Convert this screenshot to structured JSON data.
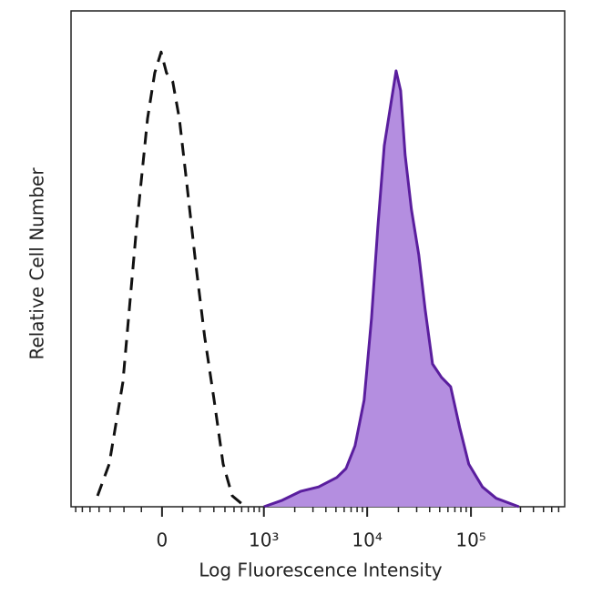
{
  "chart_data": {
    "type": "line",
    "xlabel": "Log Fluorescence Intensity",
    "ylabel": "Relative Cell Number",
    "xscale": {
      "type": "asinh",
      "width": 211
    },
    "xlim": [
      -780,
      800000
    ],
    "ylim": [
      0,
      100
    ],
    "xticks": [
      0,
      {
        "value": 1000,
        "label": "10³"
      },
      {
        "value": 10000,
        "label": "10⁴"
      },
      {
        "value": 100000,
        "label": "10⁵"
      }
    ],
    "xminorticks": [
      -700,
      -600,
      -500,
      -400,
      -300,
      -200,
      -100,
      100,
      200,
      300,
      400,
      500,
      600,
      700,
      800,
      900,
      2000,
      3000,
      4000,
      5000,
      6000,
      7000,
      8000,
      9000,
      20000,
      30000,
      40000,
      50000,
      60000,
      70000,
      80000,
      90000,
      200000,
      300000,
      400000,
      500000,
      600000,
      700000
    ],
    "series": [
      {
        "color": "#111111",
        "dash": true,
        "x": [
          -416,
          -308,
          -207,
          -126,
          -69,
          -34,
          -4,
          21,
          51,
          83,
          121,
          173,
          231,
          302,
          382,
          479,
          593
        ],
        "values": [
          2.2,
          8.6,
          25.1,
          56.3,
          78.3,
          87.5,
          91.7,
          87.5,
          85.7,
          78.3,
          65.5,
          49.0,
          34.3,
          21.5,
          8.6,
          2.2,
          0.7
        ]
      },
      {
        "color": "#5a1e9e",
        "fill": "#b48ee0",
        "x": [
          1000,
          1510,
          2270,
          3400,
          5100,
          6250,
          7640,
          9350,
          11000,
          12650,
          14600,
          17150,
          19000,
          21000,
          23200,
          26700,
          31400,
          36200,
          42600,
          52100,
          63700,
          77900,
          95300,
          129000,
          175000,
          290000
        ],
        "values": [
          0,
          1.3,
          3.1,
          4.0,
          5.9,
          7.7,
          12.3,
          21.5,
          38.0,
          56.3,
          72.8,
          82.0,
          87.9,
          83.9,
          71.0,
          60.0,
          50.8,
          39.8,
          28.8,
          26.1,
          24.2,
          16.0,
          8.6,
          4.0,
          1.7,
          0
        ]
      }
    ]
  }
}
